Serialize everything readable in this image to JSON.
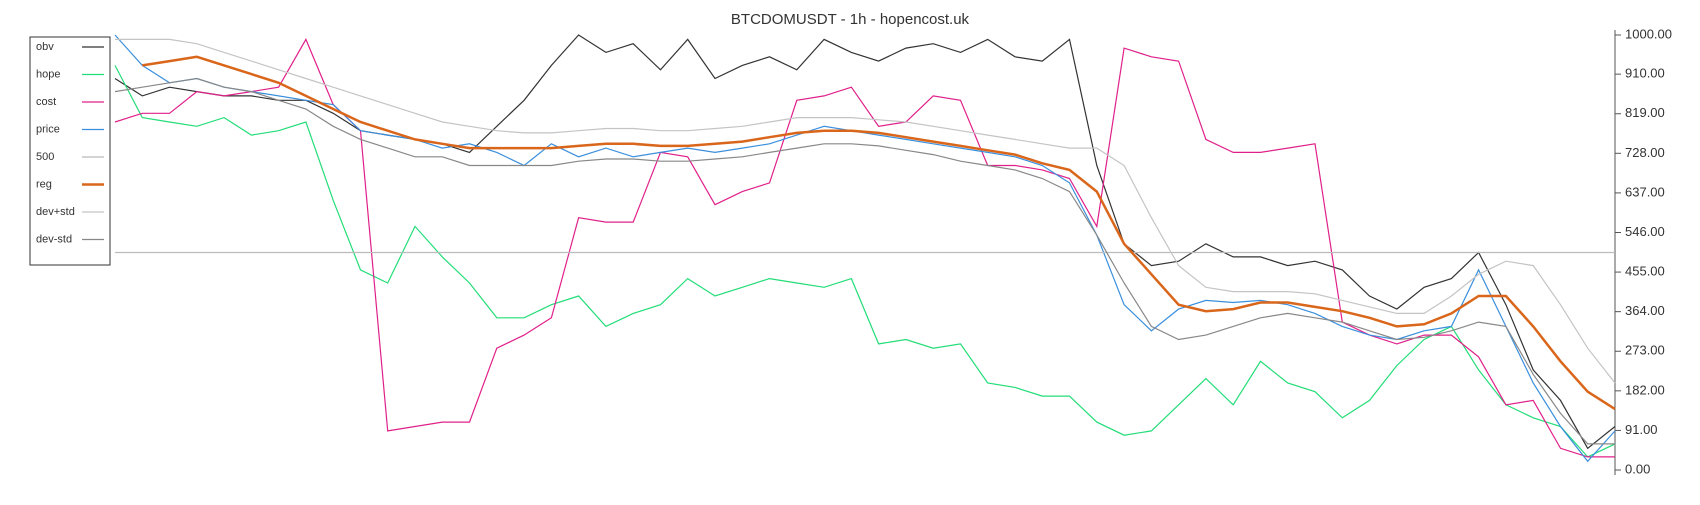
{
  "chart_data": {
    "type": "line",
    "title": "BTCDOMUSDT - 1h - hopencost.uk",
    "ylim": [
      0,
      1000
    ],
    "yticks": [
      {
        "value": 0,
        "label": "0.00"
      },
      {
        "value": 91,
        "label": "91.00"
      },
      {
        "value": 182,
        "label": "182.00"
      },
      {
        "value": 273,
        "label": "273.00"
      },
      {
        "value": 364,
        "label": "364.00"
      },
      {
        "value": 455,
        "label": "455.00"
      },
      {
        "value": 546,
        "label": "546.00"
      },
      {
        "value": 637,
        "label": "637.00"
      },
      {
        "value": 728,
        "label": "728.00"
      },
      {
        "value": 819,
        "label": "819.00"
      },
      {
        "value": 910,
        "label": "910.00"
      },
      {
        "value": 1000,
        "label": "1000.00"
      }
    ],
    "legend": "top-left",
    "series": [
      {
        "name": "obv",
        "color": "#333333",
        "values": [
          900,
          860,
          880,
          870,
          860,
          860,
          850,
          850,
          820,
          780,
          770,
          760,
          750,
          730,
          790,
          850,
          930,
          1000,
          960,
          980,
          920,
          990,
          900,
          930,
          950,
          920,
          990,
          960,
          940,
          970,
          980,
          960,
          990,
          950,
          940,
          990,
          700,
          520,
          470,
          480,
          520,
          490,
          490,
          470,
          480,
          460,
          400,
          370,
          420,
          440,
          500,
          380,
          230,
          160,
          50,
          100
        ]
      },
      {
        "name": "hope",
        "color": "#22dd77",
        "values": [
          930,
          810,
          800,
          790,
          810,
          770,
          780,
          800,
          620,
          460,
          430,
          560,
          490,
          430,
          350,
          350,
          380,
          400,
          330,
          360,
          380,
          440,
          400,
          420,
          440,
          430,
          420,
          440,
          290,
          300,
          280,
          290,
          200,
          190,
          170,
          170,
          110,
          80,
          90,
          150,
          210,
          150,
          250,
          200,
          180,
          120,
          160,
          240,
          300,
          330,
          230,
          150,
          120,
          100,
          30,
          60
        ]
      },
      {
        "name": "cost",
        "color": "#e0208a",
        "values": [
          800,
          820,
          820,
          870,
          860,
          870,
          880,
          990,
          840,
          780,
          90,
          100,
          110,
          110,
          280,
          310,
          350,
          580,
          570,
          570,
          730,
          720,
          610,
          640,
          660,
          850,
          860,
          880,
          790,
          800,
          860,
          850,
          700,
          700,
          690,
          670,
          560,
          970,
          950,
          940,
          760,
          730,
          730,
          740,
          750,
          340,
          310,
          290,
          310,
          310,
          260,
          150,
          160,
          50,
          30,
          30
        ]
      },
      {
        "name": "price",
        "color": "#3a8fdd",
        "values": [
          1000,
          930,
          890,
          900,
          880,
          870,
          860,
          850,
          840,
          780,
          770,
          760,
          740,
          750,
          730,
          700,
          750,
          720,
          740,
          720,
          730,
          740,
          730,
          740,
          750,
          770,
          790,
          780,
          770,
          760,
          750,
          740,
          730,
          720,
          700,
          660,
          540,
          380,
          320,
          370,
          390,
          385,
          390,
          380,
          360,
          330,
          310,
          300,
          320,
          330,
          460,
          330,
          200,
          100,
          20,
          90
        ]
      },
      {
        "name": "500",
        "color": "#bbbbbb",
        "values": [
          500,
          500,
          500,
          500,
          500,
          500,
          500,
          500,
          500,
          500,
          500,
          500,
          500,
          500,
          500,
          500,
          500,
          500,
          500,
          500,
          500,
          500,
          500,
          500,
          500,
          500,
          500,
          500,
          500,
          500,
          500,
          500,
          500,
          500,
          500,
          500,
          500,
          500,
          500,
          500,
          500,
          500,
          500,
          500,
          500,
          500,
          500,
          500,
          500,
          500,
          500,
          500,
          500,
          500,
          500,
          500
        ]
      },
      {
        "name": "reg",
        "color": "#d9661a",
        "values": [
          null,
          930,
          940,
          950,
          930,
          910,
          890,
          860,
          830,
          800,
          780,
          760,
          750,
          740,
          740,
          740,
          740,
          745,
          750,
          750,
          745,
          745,
          750,
          755,
          765,
          775,
          780,
          780,
          775,
          765,
          755,
          745,
          735,
          725,
          705,
          690,
          640,
          520,
          450,
          380,
          365,
          370,
          385,
          385,
          375,
          365,
          350,
          330,
          335,
          360,
          400,
          400,
          330,
          250,
          180,
          140
        ]
      },
      {
        "name": "dev+std",
        "color": "#c4c4c4",
        "values": [
          990,
          990,
          990,
          980,
          960,
          940,
          920,
          900,
          880,
          860,
          840,
          820,
          800,
          790,
          780,
          775,
          775,
          780,
          785,
          785,
          780,
          780,
          785,
          790,
          800,
          810,
          810,
          810,
          805,
          800,
          790,
          780,
          770,
          760,
          750,
          740,
          740,
          700,
          580,
          470,
          420,
          410,
          410,
          410,
          405,
          390,
          375,
          360,
          360,
          400,
          450,
          480,
          470,
          380,
          280,
          200
        ]
      },
      {
        "name": "dev-std",
        "color": "#888888",
        "values": [
          870,
          880,
          890,
          900,
          880,
          870,
          850,
          830,
          790,
          760,
          740,
          720,
          720,
          700,
          700,
          700,
          700,
          710,
          715,
          715,
          710,
          710,
          715,
          720,
          730,
          740,
          750,
          750,
          745,
          735,
          725,
          710,
          700,
          690,
          670,
          640,
          540,
          430,
          330,
          300,
          310,
          330,
          350,
          360,
          350,
          340,
          320,
          300,
          305,
          320,
          340,
          330,
          220,
          130,
          60,
          60
        ]
      }
    ]
  }
}
